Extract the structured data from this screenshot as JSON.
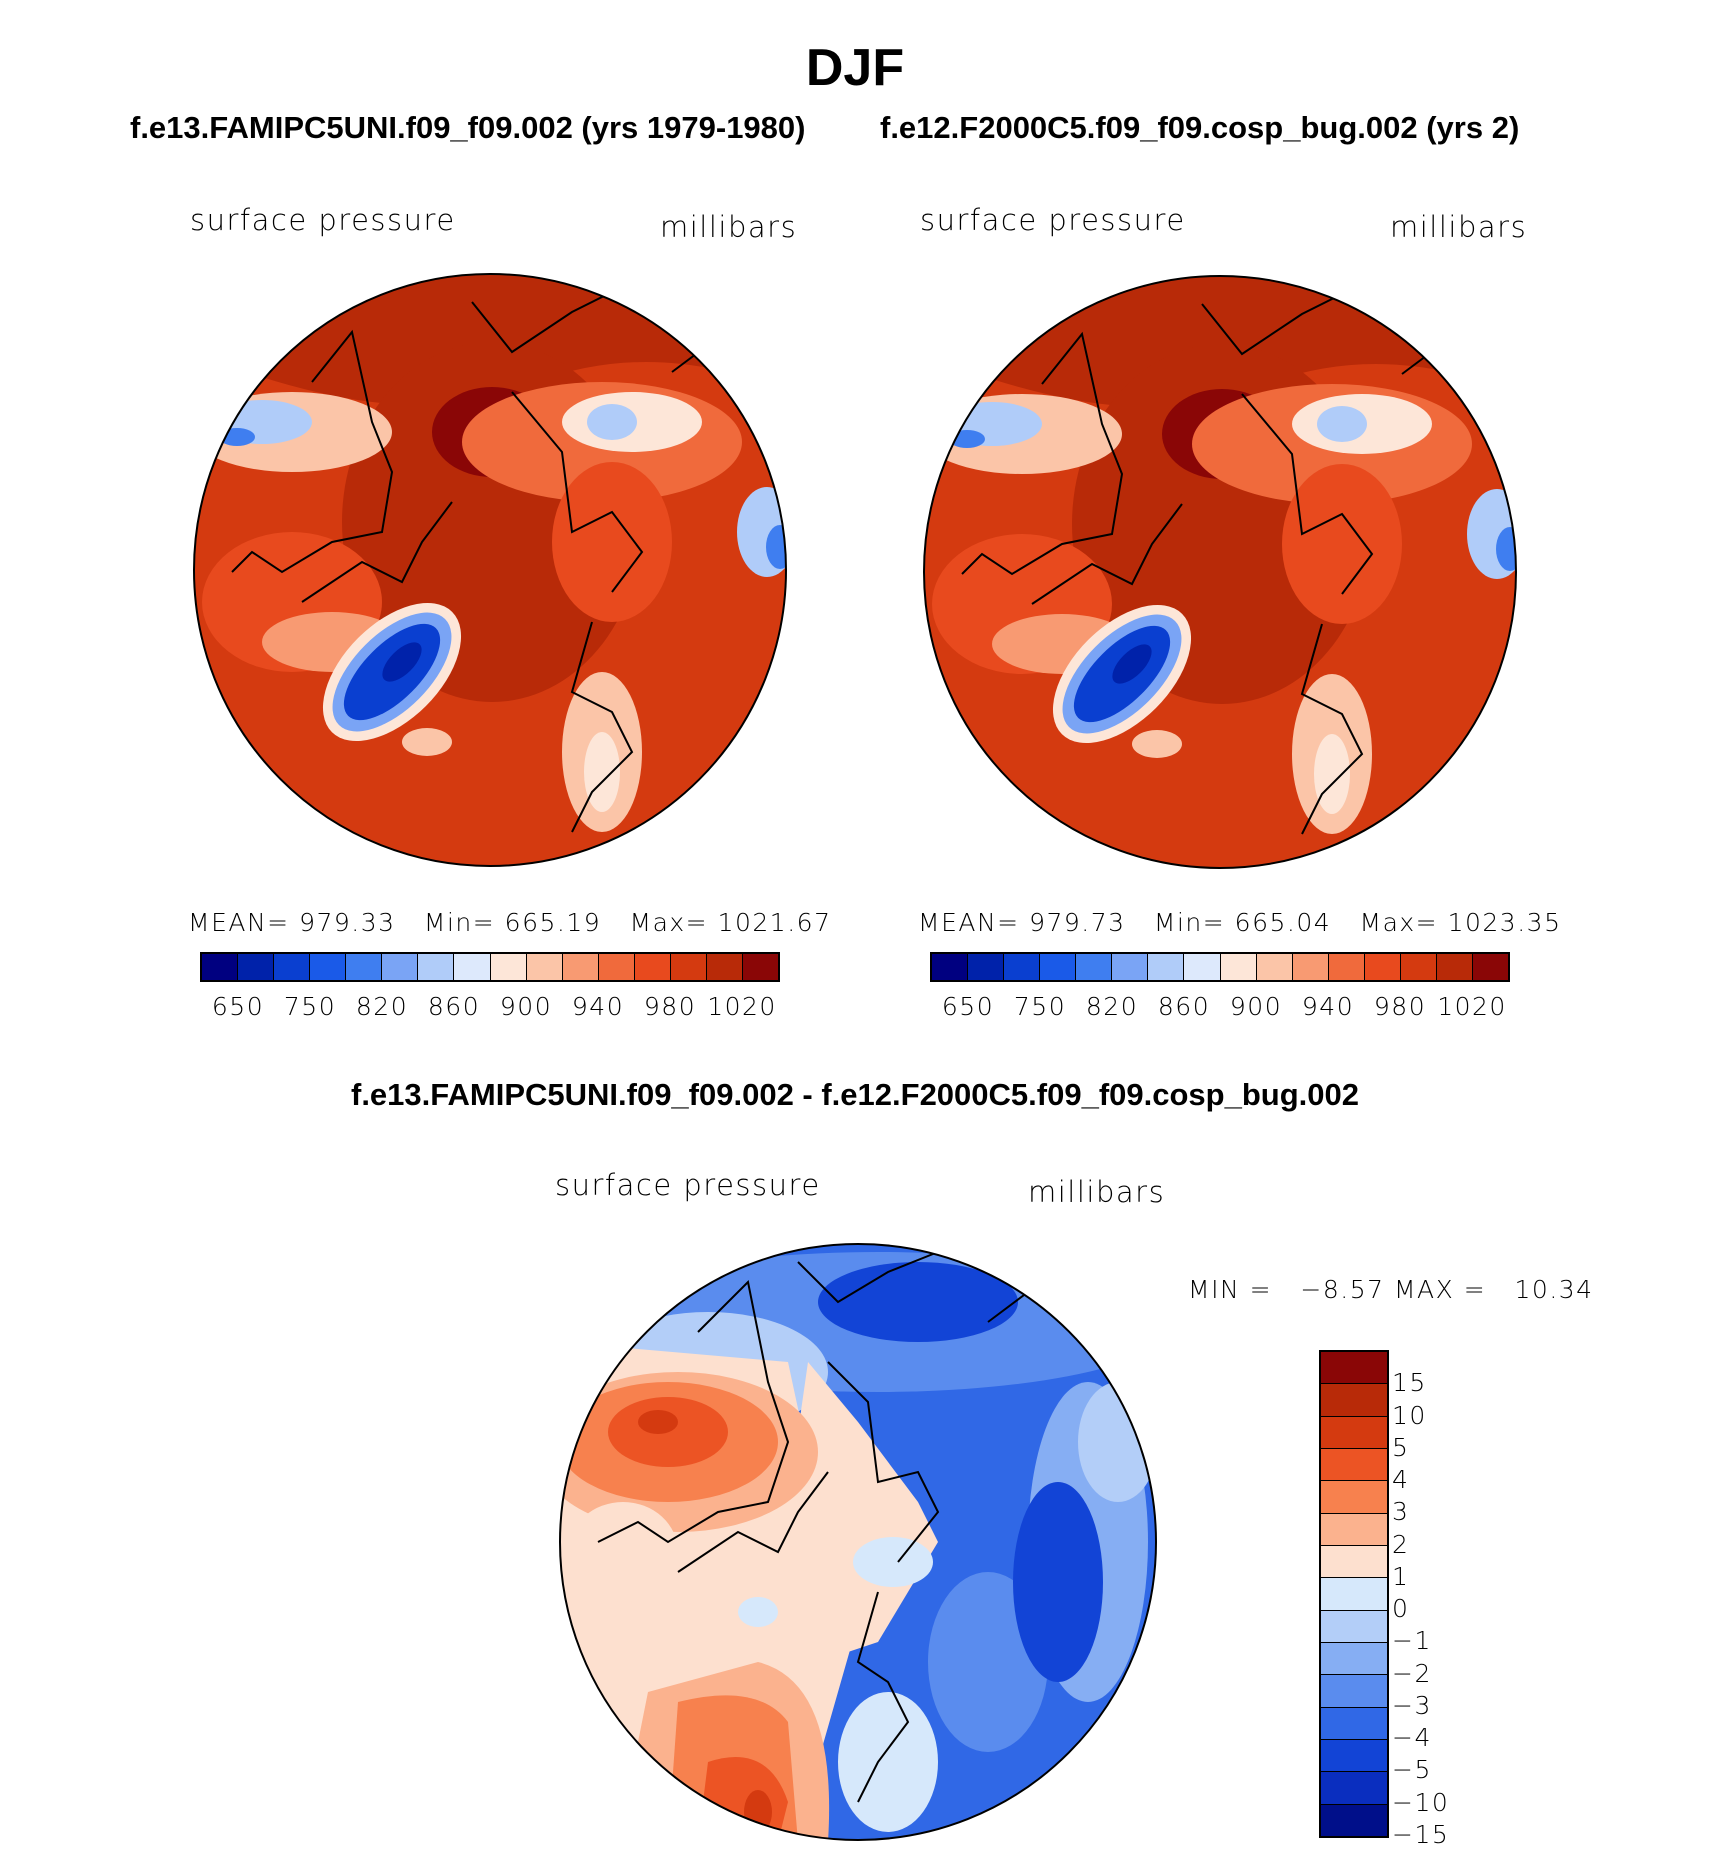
{
  "title": "DJF",
  "top_titles": {
    "left": "f.e13.FAMIPC5UNI.f09_f09.002 (yrs 1979-1980)",
    "right": "f.e12.F2000C5.f09_f09.cosp_bug.002 (yrs 2)"
  },
  "panels": [
    {
      "variable": "surface pressure",
      "units": "millibars",
      "mean_label": "MEAN=",
      "mean": "979.33",
      "min_label": "Min=",
      "min": "665.19",
      "max_label": "Max=",
      "max": "1021.67"
    },
    {
      "variable": "surface pressure",
      "units": "millibars",
      "mean_label": "MEAN=",
      "mean": "979.73",
      "min_label": "Min=",
      "min": "665.04",
      "max_label": "Max=",
      "max": "1023.35"
    }
  ],
  "colorbar": {
    "colors": [
      "#000080",
      "#0022aa",
      "#0a3fd0",
      "#1a5ae8",
      "#3f7ef0",
      "#7aa4f5",
      "#b0ccf9",
      "#dde9fc",
      "#fde6d8",
      "#fbc5a8",
      "#f89a72",
      "#f06a3c",
      "#e84a1e",
      "#d43a10",
      "#b82a08",
      "#8a0606"
    ],
    "ticks": [
      "650",
      "750",
      "820",
      "860",
      "900",
      "940",
      "980",
      "1020"
    ]
  },
  "diff": {
    "title": "f.e13.FAMIPC5UNI.f09_f09.002 - f.e12.F2000C5.f09_f09.cosp_bug.002",
    "variable": "surface pressure",
    "units": "millibars",
    "min_label": "MIN =",
    "min": "−8.57",
    "max_label": "MAX =",
    "max": "10.34",
    "colors": [
      "#8a0606",
      "#b82a08",
      "#d43a10",
      "#ec5424",
      "#f7814e",
      "#fbb28e",
      "#fde0cf",
      "#d6e8fb",
      "#b3cef8",
      "#86aef3",
      "#5a8cee",
      "#3068e6",
      "#1244d6",
      "#0a2ebf",
      "#000f8a"
    ],
    "ticks": [
      "15",
      "10",
      "5",
      "4",
      "3",
      "2",
      "1",
      "0",
      "−1",
      "−2",
      "−3",
      "−4",
      "−5",
      "−10",
      "−15"
    ]
  }
}
